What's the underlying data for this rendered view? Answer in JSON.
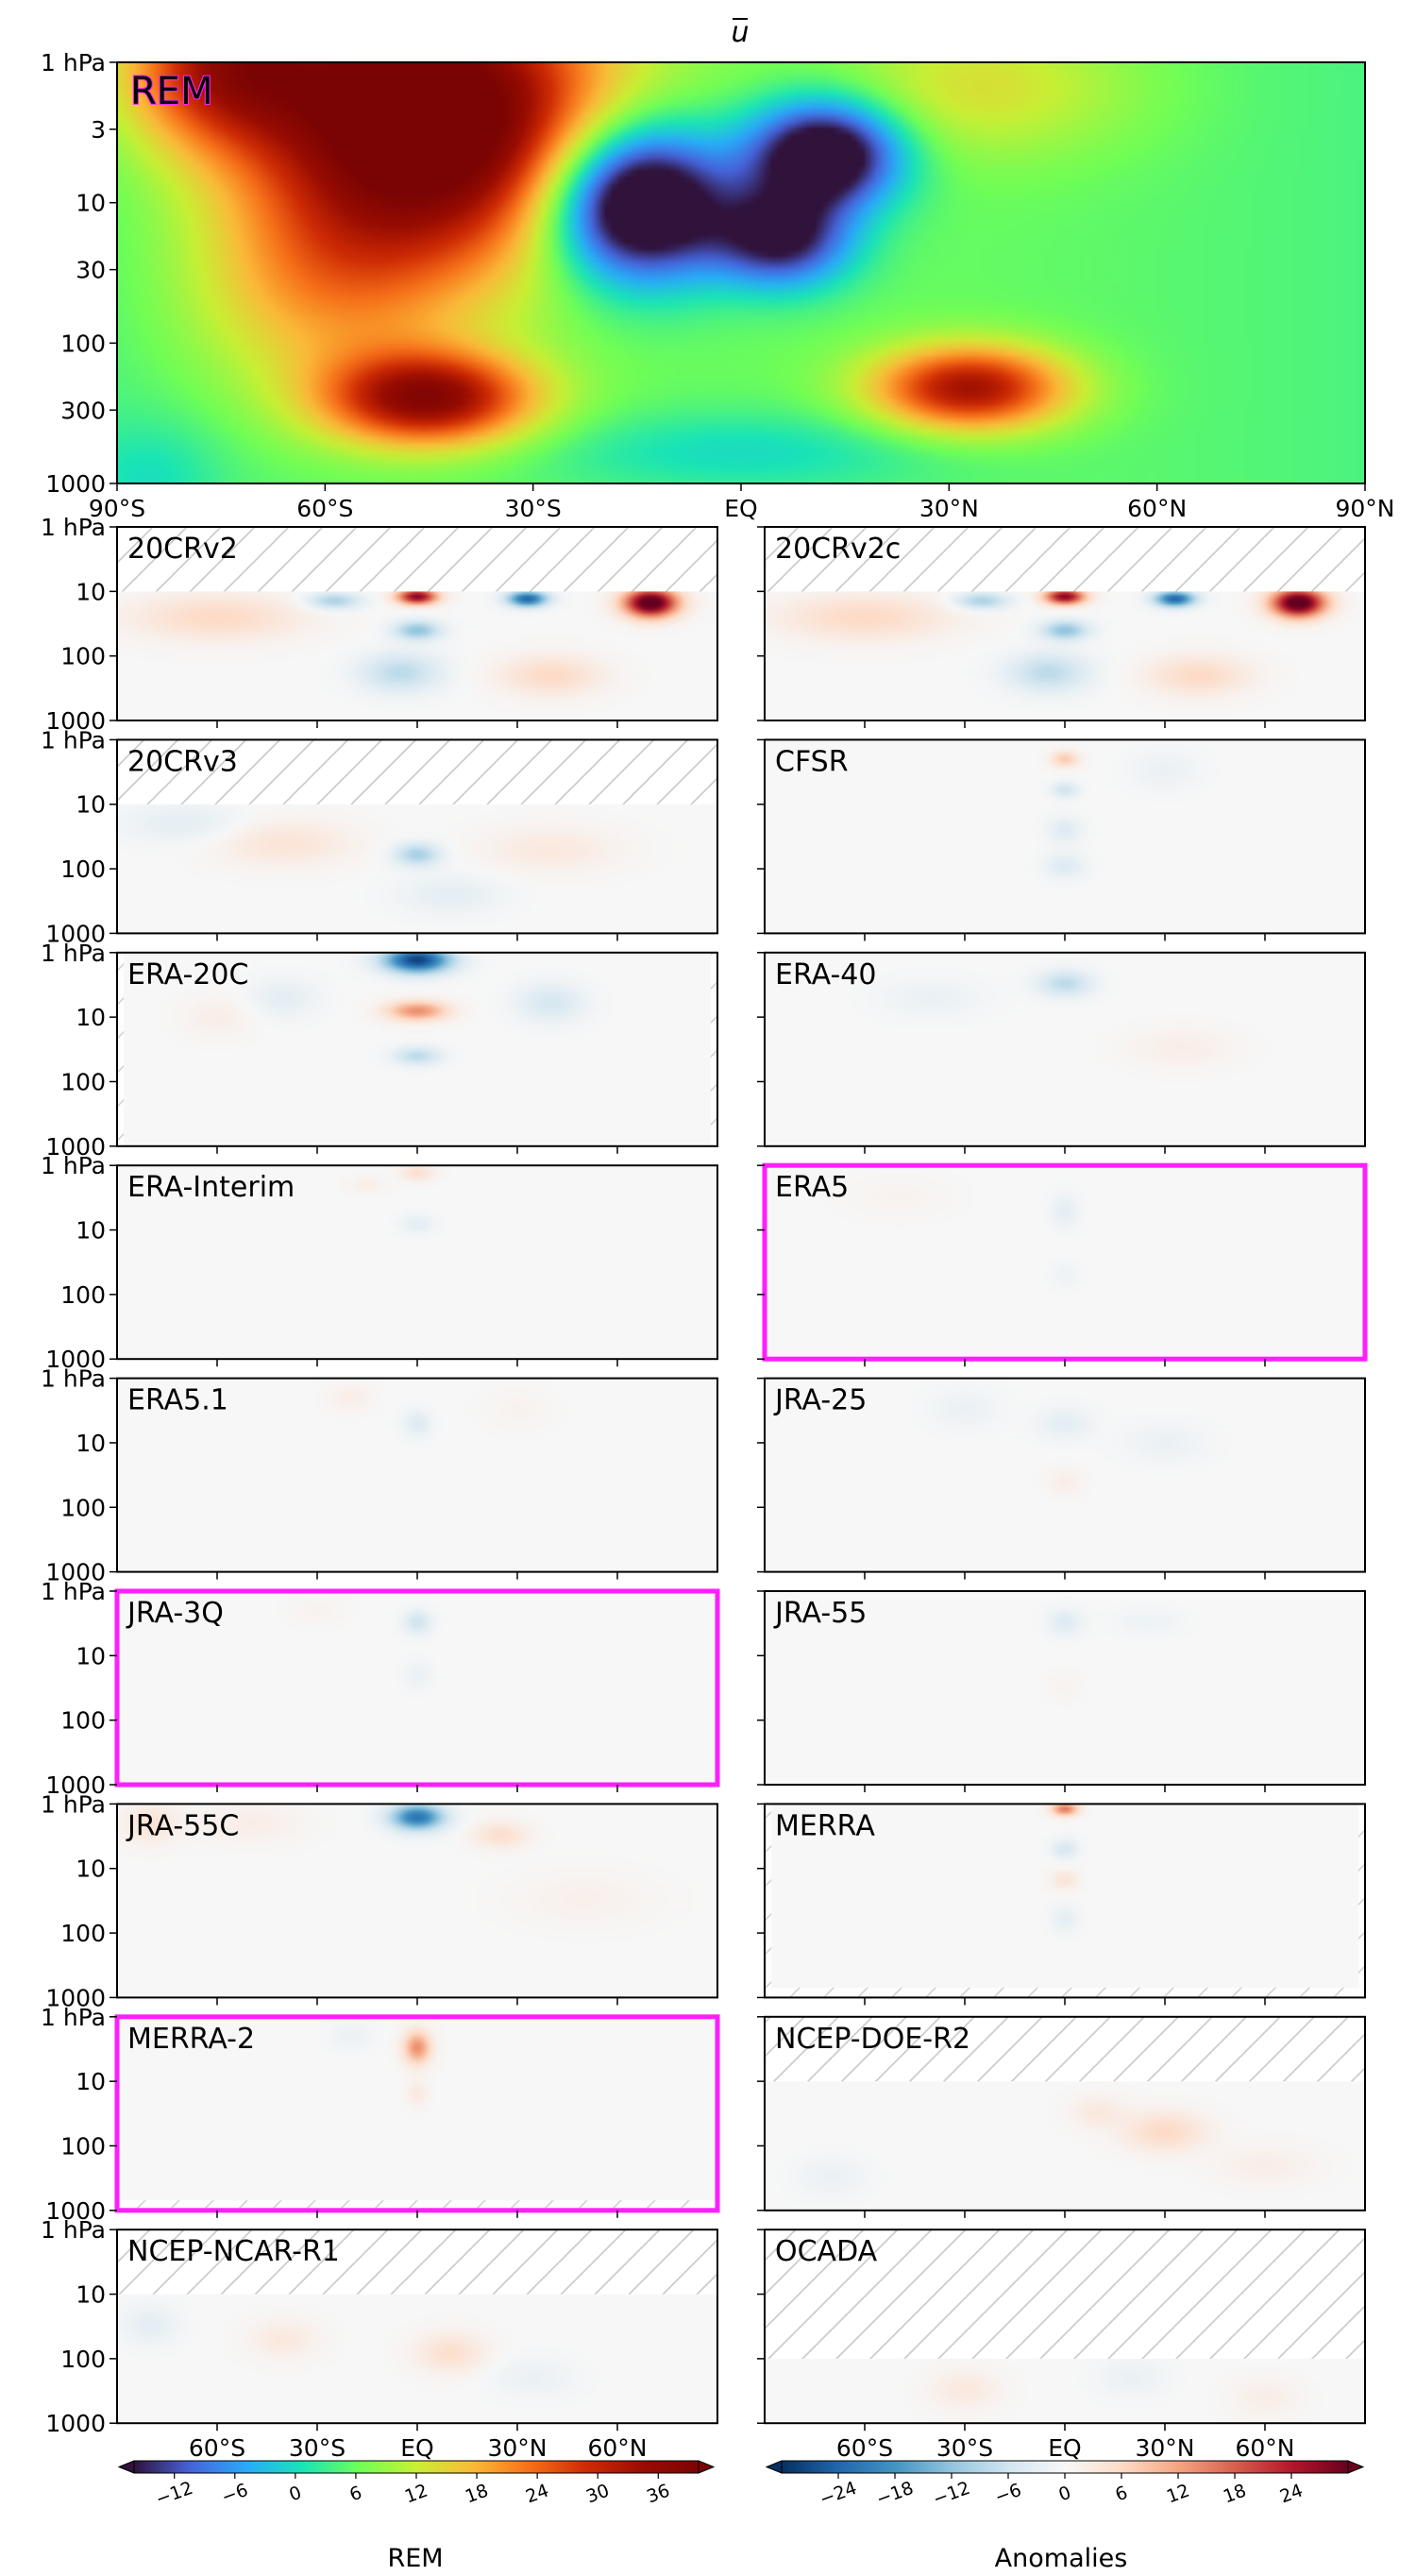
{
  "chart_data": {
    "type": "heatmap",
    "title": "ū",
    "variable_symbol": "u",
    "x": {
      "range": [
        -90,
        90
      ],
      "top_ticks": [
        {
          "v": -90,
          "label": "90°S"
        },
        {
          "v": -60,
          "label": "60°S"
        },
        {
          "v": -30,
          "label": "30°S"
        },
        {
          "v": 0,
          "label": "EQ"
        },
        {
          "v": 30,
          "label": "30°N"
        },
        {
          "v": 60,
          "label": "60°N"
        },
        {
          "v": 90,
          "label": "90°N"
        }
      ],
      "bottom_ticks": [
        {
          "v": -60,
          "label": "60°S"
        },
        {
          "v": -30,
          "label": "30°S"
        },
        {
          "v": 0,
          "label": "EQ"
        },
        {
          "v": 30,
          "label": "30°N"
        },
        {
          "v": 60,
          "label": "60°N"
        }
      ]
    },
    "y": {
      "scale": "log",
      "range_hPa": [
        1,
        1000
      ],
      "top_ticks": [
        {
          "v": 1,
          "label": "1 hPa"
        },
        {
          "v": 3,
          "label": "3"
        },
        {
          "v": 10,
          "label": "10"
        },
        {
          "v": 30,
          "label": "30"
        },
        {
          "v": 100,
          "label": "100"
        },
        {
          "v": 300,
          "label": "300"
        },
        {
          "v": 1000,
          "label": "1000"
        }
      ],
      "small_ticks": [
        {
          "v": 1,
          "label": "1 hPa"
        },
        {
          "v": 10,
          "label": "10"
        },
        {
          "v": 100,
          "label": "100"
        },
        {
          "v": 1000,
          "label": "1000"
        }
      ]
    },
    "rem_panel": {
      "label": "REM",
      "highlight": true,
      "features": [
        {
          "lat": -45,
          "p": 2.5,
          "lat_w": 25,
          "p_w": 1.0,
          "value": 42
        },
        {
          "lat": -75,
          "p": 1,
          "lat_w": 15,
          "p_w": 0.6,
          "value": 24
        },
        {
          "lat": -15,
          "p": 10,
          "lat_w": 13,
          "p_w": 0.55,
          "value": -36
        },
        {
          "lat": 12,
          "p": 4.5,
          "lat_w": 11,
          "p_w": 0.38,
          "value": -30
        },
        {
          "lat": 6,
          "p": 18,
          "lat_w": 10,
          "p_w": 0.35,
          "value": -22
        },
        {
          "lat": -45,
          "p": 250,
          "lat_w": 15,
          "p_w": 0.33,
          "value": 30
        },
        {
          "lat": 33,
          "p": 210,
          "lat_w": 14,
          "p_w": 0.3,
          "value": 28
        },
        {
          "lat": 35,
          "p": 1.5,
          "lat_w": 22,
          "p_w": 0.5,
          "value": 8
        },
        {
          "lat": -60,
          "p": 40,
          "lat_w": 20,
          "p_w": 0.8,
          "value": 12
        },
        {
          "lat": 0,
          "p": 600,
          "lat_w": 30,
          "p_w": 0.3,
          "value": -6
        },
        {
          "lat": -85,
          "p": 900,
          "lat_w": 10,
          "p_w": 0.4,
          "value": -4
        }
      ]
    },
    "anomaly_panels": [
      {
        "label": "20CRv2",
        "highlight": false,
        "hatch_top_hPa": 10,
        "hatch_bottom_hPa": null,
        "hatch_lat": null,
        "features": [
          {
            "lat": 70,
            "p": 15,
            "lat_w": 8,
            "p_w": 0.22,
            "value": 34
          },
          {
            "lat": 0,
            "p": 12,
            "lat_w": 6,
            "p_w": 0.12,
            "value": 28
          },
          {
            "lat": 33,
            "p": 13,
            "lat_w": 6,
            "p_w": 0.12,
            "value": -24
          },
          {
            "lat": -25,
            "p": 14,
            "lat_w": 8,
            "p_w": 0.13,
            "value": -10
          },
          {
            "lat": 0,
            "p": 40,
            "lat_w": 7,
            "p_w": 0.15,
            "value": -12
          },
          {
            "lat": -60,
            "p": 25,
            "lat_w": 25,
            "p_w": 0.35,
            "value": 6
          },
          {
            "lat": -5,
            "p": 180,
            "lat_w": 12,
            "p_w": 0.3,
            "value": -8
          },
          {
            "lat": 40,
            "p": 200,
            "lat_w": 15,
            "p_w": 0.3,
            "value": 6
          }
        ]
      },
      {
        "label": "20CRv2c",
        "highlight": false,
        "hatch_top_hPa": 10,
        "hatch_bottom_hPa": null,
        "hatch_lat": null,
        "features": [
          {
            "lat": 70,
            "p": 15,
            "lat_w": 8,
            "p_w": 0.22,
            "value": 34
          },
          {
            "lat": 0,
            "p": 12,
            "lat_w": 6,
            "p_w": 0.12,
            "value": 28
          },
          {
            "lat": 33,
            "p": 13,
            "lat_w": 6,
            "p_w": 0.12,
            "value": -24
          },
          {
            "lat": -25,
            "p": 14,
            "lat_w": 8,
            "p_w": 0.13,
            "value": -10
          },
          {
            "lat": 0,
            "p": 40,
            "lat_w": 7,
            "p_w": 0.15,
            "value": -12
          },
          {
            "lat": -60,
            "p": 25,
            "lat_w": 25,
            "p_w": 0.35,
            "value": 6
          },
          {
            "lat": -5,
            "p": 180,
            "lat_w": 12,
            "p_w": 0.3,
            "value": -8
          },
          {
            "lat": 40,
            "p": 200,
            "lat_w": 15,
            "p_w": 0.3,
            "value": 6
          }
        ]
      },
      {
        "label": "20CRv3",
        "highlight": false,
        "hatch_top_hPa": 10,
        "hatch_bottom_hPa": null,
        "hatch_lat": null,
        "features": [
          {
            "lat": 0,
            "p": 60,
            "lat_w": 7,
            "p_w": 0.18,
            "value": -10
          },
          {
            "lat": -40,
            "p": 40,
            "lat_w": 20,
            "p_w": 0.35,
            "value": 4
          },
          {
            "lat": 40,
            "p": 50,
            "lat_w": 20,
            "p_w": 0.35,
            "value": 3
          },
          {
            "lat": -70,
            "p": 20,
            "lat_w": 18,
            "p_w": 0.3,
            "value": -3
          },
          {
            "lat": 10,
            "p": 250,
            "lat_w": 15,
            "p_w": 0.3,
            "value": -3
          }
        ]
      },
      {
        "label": "CFSR",
        "highlight": false,
        "hatch_top_hPa": null,
        "hatch_bottom_hPa": null,
        "hatch_lat": null,
        "features": [
          {
            "lat": 0,
            "p": 2,
            "lat_w": 4,
            "p_w": 0.12,
            "value": 8
          },
          {
            "lat": 0,
            "p": 6,
            "lat_w": 4,
            "p_w": 0.12,
            "value": -6
          },
          {
            "lat": 0,
            "p": 25,
            "lat_w": 5,
            "p_w": 0.2,
            "value": -4
          },
          {
            "lat": 0,
            "p": 90,
            "lat_w": 6,
            "p_w": 0.2,
            "value": -4
          },
          {
            "lat": 30,
            "p": 3,
            "lat_w": 10,
            "p_w": 0.3,
            "value": -2
          }
        ]
      },
      {
        "label": "ERA-20C",
        "highlight": false,
        "hatch_top_hPa": null,
        "hatch_bottom_hPa": null,
        "hatch_lat": 88,
        "features": [
          {
            "lat": 0,
            "p": 1.3,
            "lat_w": 10,
            "p_w": 0.2,
            "value": -28
          },
          {
            "lat": 0,
            "p": 8,
            "lat_w": 9,
            "p_w": 0.15,
            "value": 14
          },
          {
            "lat": 0,
            "p": 40,
            "lat_w": 7,
            "p_w": 0.14,
            "value": -8
          },
          {
            "lat": 40,
            "p": 6,
            "lat_w": 10,
            "p_w": 0.3,
            "value": -5
          },
          {
            "lat": -40,
            "p": 5,
            "lat_w": 10,
            "p_w": 0.3,
            "value": -3
          },
          {
            "lat": -60,
            "p": 10,
            "lat_w": 10,
            "p_w": 0.3,
            "value": 2
          }
        ]
      },
      {
        "label": "ERA-40",
        "highlight": false,
        "hatch_top_hPa": null,
        "hatch_bottom_hPa": null,
        "hatch_lat": null,
        "features": [
          {
            "lat": 0,
            "p": 3,
            "lat_w": 8,
            "p_w": 0.2,
            "value": -8
          },
          {
            "lat": -40,
            "p": 5,
            "lat_w": 15,
            "p_w": 0.3,
            "value": -2
          },
          {
            "lat": 35,
            "p": 30,
            "lat_w": 15,
            "p_w": 0.3,
            "value": 2
          }
        ]
      },
      {
        "label": "ERA-Interim",
        "highlight": false,
        "hatch_top_hPa": null,
        "hatch_bottom_hPa": null,
        "hatch_lat": null,
        "features": [
          {
            "lat": 0,
            "p": 1.3,
            "lat_w": 5,
            "p_w": 0.12,
            "value": 5
          },
          {
            "lat": 0,
            "p": 8,
            "lat_w": 5,
            "p_w": 0.15,
            "value": -3
          },
          {
            "lat": -15,
            "p": 2,
            "lat_w": 5,
            "p_w": 0.12,
            "value": 2
          }
        ]
      },
      {
        "label": "ERA5",
        "highlight": true,
        "hatch_top_hPa": null,
        "hatch_bottom_hPa": null,
        "hatch_lat": null,
        "features": [
          {
            "lat": 0,
            "p": 5,
            "lat_w": 4,
            "p_w": 0.25,
            "value": -3
          },
          {
            "lat": 0,
            "p": 50,
            "lat_w": 4,
            "p_w": 0.2,
            "value": -1.5
          },
          {
            "lat": -50,
            "p": 3,
            "lat_w": 15,
            "p_w": 0.3,
            "value": 1
          }
        ]
      },
      {
        "label": "ERA5.1",
        "highlight": false,
        "hatch_top_hPa": null,
        "hatch_bottom_hPa": null,
        "hatch_lat": null,
        "features": [
          {
            "lat": 0,
            "p": 5,
            "lat_w": 4,
            "p_w": 0.2,
            "value": -4
          },
          {
            "lat": -20,
            "p": 2,
            "lat_w": 6,
            "p_w": 0.2,
            "value": 2
          },
          {
            "lat": 30,
            "p": 3,
            "lat_w": 10,
            "p_w": 0.3,
            "value": 1
          }
        ]
      },
      {
        "label": "JRA-25",
        "highlight": false,
        "hatch_top_hPa": null,
        "hatch_bottom_hPa": null,
        "hatch_lat": null,
        "features": [
          {
            "lat": 0,
            "p": 5,
            "lat_w": 8,
            "p_w": 0.25,
            "value": -3
          },
          {
            "lat": -30,
            "p": 3,
            "lat_w": 10,
            "p_w": 0.3,
            "value": -2
          },
          {
            "lat": 30,
            "p": 10,
            "lat_w": 12,
            "p_w": 0.3,
            "value": -2
          },
          {
            "lat": 0,
            "p": 40,
            "lat_w": 5,
            "p_w": 0.2,
            "value": 2
          }
        ]
      },
      {
        "label": "JRA-3Q",
        "highlight": true,
        "hatch_top_hPa": null,
        "hatch_bottom_hPa": null,
        "hatch_lat": null,
        "features": [
          {
            "lat": 0,
            "p": 3,
            "lat_w": 4,
            "p_w": 0.18,
            "value": -6
          },
          {
            "lat": 0,
            "p": 20,
            "lat_w": 4,
            "p_w": 0.22,
            "value": -2
          },
          {
            "lat": -30,
            "p": 2,
            "lat_w": 8,
            "p_w": 0.2,
            "value": 1
          }
        ]
      },
      {
        "label": "JRA-55",
        "highlight": false,
        "hatch_top_hPa": null,
        "hatch_bottom_hPa": null,
        "hatch_lat": null,
        "features": [
          {
            "lat": 0,
            "p": 3,
            "lat_w": 5,
            "p_w": 0.2,
            "value": -4
          },
          {
            "lat": 25,
            "p": 3,
            "lat_w": 10,
            "p_w": 0.2,
            "value": -1.5
          },
          {
            "lat": 0,
            "p": 30,
            "lat_w": 5,
            "p_w": 0.2,
            "value": 1
          }
        ]
      },
      {
        "label": "JRA-55C",
        "highlight": false,
        "hatch_top_hPa": null,
        "hatch_bottom_hPa": null,
        "hatch_lat": null,
        "features": [
          {
            "lat": 0,
            "p": 1.6,
            "lat_w": 8,
            "p_w": 0.2,
            "value": -22
          },
          {
            "lat": 25,
            "p": 3,
            "lat_w": 8,
            "p_w": 0.2,
            "value": 5
          },
          {
            "lat": -50,
            "p": 2,
            "lat_w": 15,
            "p_w": 0.3,
            "value": 2
          },
          {
            "lat": -80,
            "p": 2,
            "lat_w": 8,
            "p_w": 0.3,
            "value": 4
          },
          {
            "lat": 50,
            "p": 30,
            "lat_w": 20,
            "p_w": 0.4,
            "value": 1.5
          }
        ]
      },
      {
        "label": "MERRA",
        "highlight": false,
        "hatch_top_hPa": null,
        "hatch_bottom_hPa": 700,
        "hatch_lat": 88,
        "features": [
          {
            "lat": 0,
            "p": 1.2,
            "lat_w": 4,
            "p_w": 0.1,
            "value": 16
          },
          {
            "lat": 0,
            "p": 5,
            "lat_w": 4,
            "p_w": 0.15,
            "value": -5
          },
          {
            "lat": 0,
            "p": 15,
            "lat_w": 4,
            "p_w": 0.15,
            "value": 4
          },
          {
            "lat": 0,
            "p": 60,
            "lat_w": 4,
            "p_w": 0.2,
            "value": -3
          }
        ]
      },
      {
        "label": "MERRA-2",
        "highlight": true,
        "hatch_top_hPa": null,
        "hatch_bottom_hPa": 700,
        "hatch_lat": null,
        "features": [
          {
            "lat": 0,
            "p": 3,
            "lat_w": 4,
            "p_w": 0.25,
            "value": 14
          },
          {
            "lat": 0,
            "p": 15,
            "lat_w": 3,
            "p_w": 0.2,
            "value": 3
          },
          {
            "lat": -20,
            "p": 2,
            "lat_w": 6,
            "p_w": 0.2,
            "value": -2
          }
        ]
      },
      {
        "label": "NCEP-DOE-R2",
        "highlight": false,
        "hatch_top_hPa": 10,
        "hatch_bottom_hPa": null,
        "hatch_lat": null,
        "features": [
          {
            "lat": 30,
            "p": 60,
            "lat_w": 12,
            "p_w": 0.3,
            "value": 6
          },
          {
            "lat": 10,
            "p": 30,
            "lat_w": 8,
            "p_w": 0.25,
            "value": 3
          },
          {
            "lat": 60,
            "p": 200,
            "lat_w": 15,
            "p_w": 0.3,
            "value": 2
          },
          {
            "lat": -70,
            "p": 300,
            "lat_w": 10,
            "p_w": 0.3,
            "value": -2
          }
        ]
      },
      {
        "label": "NCEP-NCAR-R1",
        "highlight": false,
        "hatch_top_hPa": 10,
        "hatch_bottom_hPa": null,
        "hatch_lat": null,
        "features": [
          {
            "lat": 10,
            "p": 80,
            "lat_w": 10,
            "p_w": 0.3,
            "value": 5
          },
          {
            "lat": -40,
            "p": 50,
            "lat_w": 10,
            "p_w": 0.3,
            "value": 3
          },
          {
            "lat": -80,
            "p": 30,
            "lat_w": 8,
            "p_w": 0.3,
            "value": -3
          },
          {
            "lat": 35,
            "p": 200,
            "lat_w": 12,
            "p_w": 0.3,
            "value": -2
          }
        ]
      },
      {
        "label": "OCADA",
        "highlight": false,
        "hatch_top_hPa": 100,
        "hatch_bottom_hPa": null,
        "hatch_lat": null,
        "features": [
          {
            "lat": -30,
            "p": 300,
            "lat_w": 10,
            "p_w": 0.3,
            "value": 3
          },
          {
            "lat": 20,
            "p": 200,
            "lat_w": 10,
            "p_w": 0.3,
            "value": -2
          },
          {
            "lat": 60,
            "p": 400,
            "lat_w": 10,
            "p_w": 0.3,
            "value": 2
          }
        ]
      }
    ],
    "colorbars": [
      {
        "name": "REM",
        "colormap": "turbo",
        "range": [
          -16,
          40
        ],
        "ticks": [
          -12,
          -6,
          0,
          6,
          12,
          18,
          24,
          30,
          36
        ],
        "extend": "both"
      },
      {
        "name": "Anomalies",
        "colormap": "RdBu_r",
        "range": [
          -30,
          30
        ],
        "ticks": [
          -24,
          -18,
          -12,
          -6,
          0,
          6,
          12,
          18,
          24
        ],
        "extend": "both"
      }
    ],
    "highlight_color": "#ff1eff",
    "hatch_color": "#c8c8c8"
  }
}
